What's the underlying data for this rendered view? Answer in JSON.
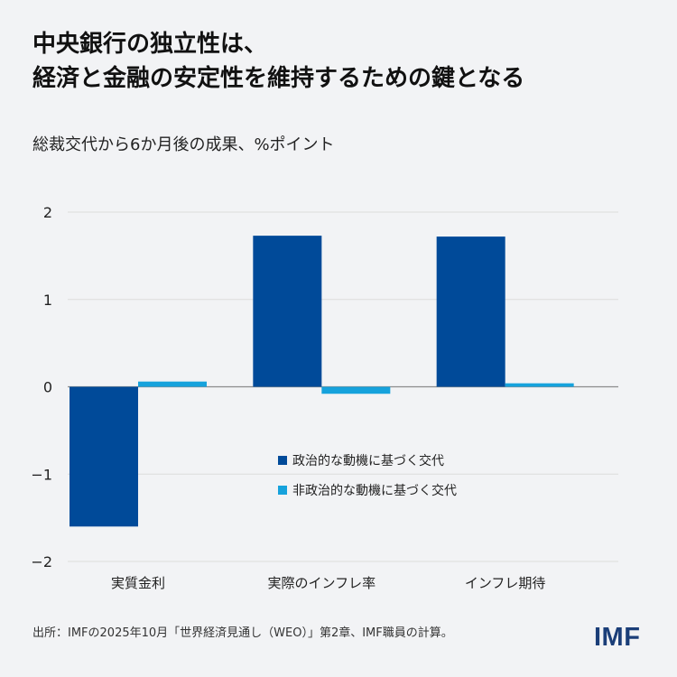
{
  "title": {
    "line1": "中央銀行の独立性は、",
    "line2": "経済と金融の安定性を維持するための鍵となる"
  },
  "subtitle": "総裁交代から6か月後の成果、%ポイント",
  "chart_data": {
    "type": "bar",
    "title": "",
    "ylabel": "総裁交代から6か月後の成果、%ポイント",
    "categories": [
      "実質金利",
      "実際のインフレ率",
      "インフレ期待"
    ],
    "series": [
      {
        "name": "政治的な動機に基づく交代",
        "values": [
          -1.6,
          1.73,
          1.72
        ],
        "color": "#004a99"
      },
      {
        "name": "非政治的な動機に基づく交代",
        "values": [
          0.06,
          -0.08,
          0.04
        ],
        "color": "#16a2dc"
      }
    ],
    "ylim": [
      -2,
      2
    ],
    "yticks": [
      2,
      1,
      0,
      -1,
      -2
    ],
    "ytick_labels": [
      "2",
      "1",
      "0",
      "−1",
      "−2"
    ],
    "grid": true,
    "legend_position": "center"
  },
  "source": "出所：IMFの2025年10月「世界経済見通し（WEO）」第2章、IMF職員の計算。",
  "logo": "IMF"
}
